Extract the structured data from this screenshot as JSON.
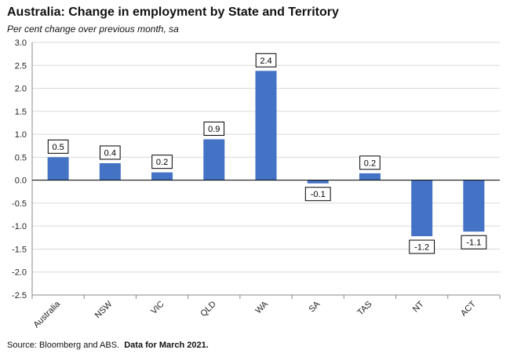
{
  "header": {
    "title": "Australia: Change in employment by State and Territory",
    "subtitle": "Per cent change over previous month, sa"
  },
  "footer": {
    "source": "Source: Bloomberg and ABS.",
    "note": "Data for March 2021."
  },
  "colors": {
    "bar": "#4472C4",
    "grid": "#d9d9d9",
    "axis": "#888888"
  },
  "chart_data": {
    "type": "bar",
    "categories": [
      "Australia",
      "NSW",
      "VIC",
      "QLD",
      "WA",
      "SA",
      "TAS",
      "NT",
      "ACT"
    ],
    "values": [
      0.5,
      0.37,
      0.17,
      0.89,
      2.38,
      -0.07,
      0.15,
      -1.22,
      -1.12
    ],
    "data_labels": [
      "0.5",
      "0.4",
      "0.2",
      "0.9",
      "2.4",
      "-0.1",
      "0.2",
      "-1.2",
      "-1.1"
    ],
    "ylim": [
      -2.5,
      3.0
    ],
    "yticks": [
      "3.0",
      "2.5",
      "2.0",
      "1.5",
      "1.0",
      "0.5",
      "0.0",
      "-0.5",
      "-1.0",
      "-1.5",
      "-2.0",
      "-2.5"
    ],
    "grid": true
  }
}
